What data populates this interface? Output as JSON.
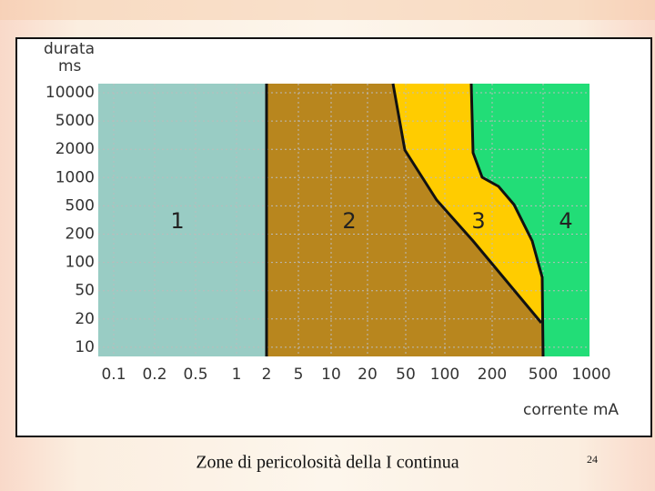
{
  "figure": {
    "y_axis_title": [
      "durata",
      "ms"
    ],
    "x_axis_title": "corrente mA",
    "y_ticks": [
      "10000",
      "5000",
      "2000",
      "1000",
      "500",
      "200",
      "100",
      "50",
      "20",
      "10"
    ],
    "x_ticks": [
      "0.1",
      "0.2",
      "0.5",
      "1",
      "2",
      "5",
      "10",
      "20",
      "50",
      "100",
      "200",
      "500",
      "1000"
    ],
    "zones": [
      "1",
      "2",
      "3",
      "4"
    ]
  },
  "caption": "Zone di pericolosità della I continua",
  "page_number": "24"
}
